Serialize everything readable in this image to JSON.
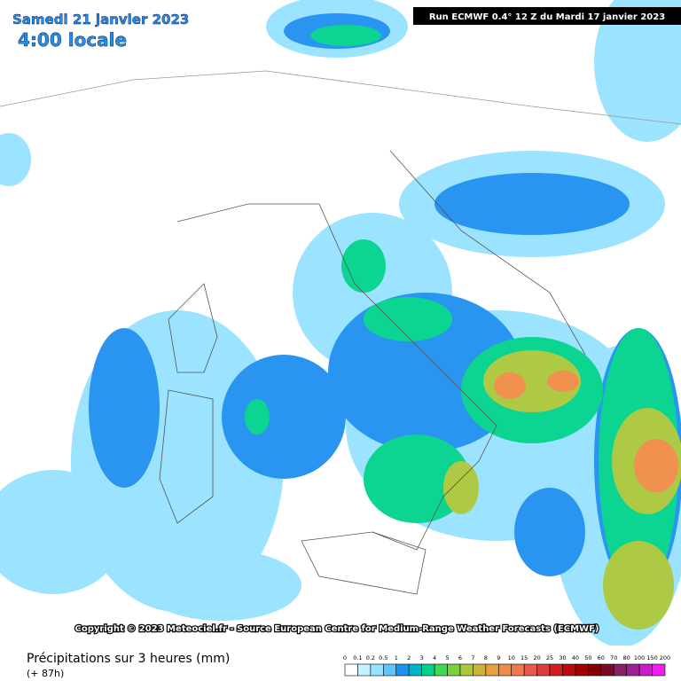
{
  "header": {
    "date": "Samedi 21 janvier 2023",
    "time": "4:00 locale",
    "run": "Run ECMWF 0.4° 12 Z du Mardi 17 janvier 2023"
  },
  "copyright": "Copyright © 2023 Meteociel.fr - Source European Centre for Medium-Range Weather Forecasts (ECMWF)",
  "legend": {
    "title": "Précipitations sur 3 heures (mm)",
    "lead": "(+ 87h)",
    "labels": [
      "0",
      "0.1",
      "0.2",
      "0.5",
      "1",
      "2",
      "3",
      "4",
      "5",
      "6",
      "7",
      "8",
      "9",
      "10",
      "15",
      "20",
      "25",
      "30",
      "40",
      "50",
      "60",
      "70",
      "80",
      "100",
      "150",
      "200"
    ],
    "colors": [
      "#ffffff",
      "#c6f2ff",
      "#96e2ff",
      "#5ac8ff",
      "#1e90f0",
      "#00b4c8",
      "#00d28c",
      "#3cdc50",
      "#78d23c",
      "#aac83c",
      "#c8b43c",
      "#e6a03c",
      "#f08c46",
      "#f07850",
      "#e65a50",
      "#dc3c3c",
      "#d21e1e",
      "#be0a0a",
      "#a00000",
      "#820000",
      "#780a28",
      "#8c1e64",
      "#a01e96",
      "#c81ec8",
      "#f01ef0"
    ]
  }
}
